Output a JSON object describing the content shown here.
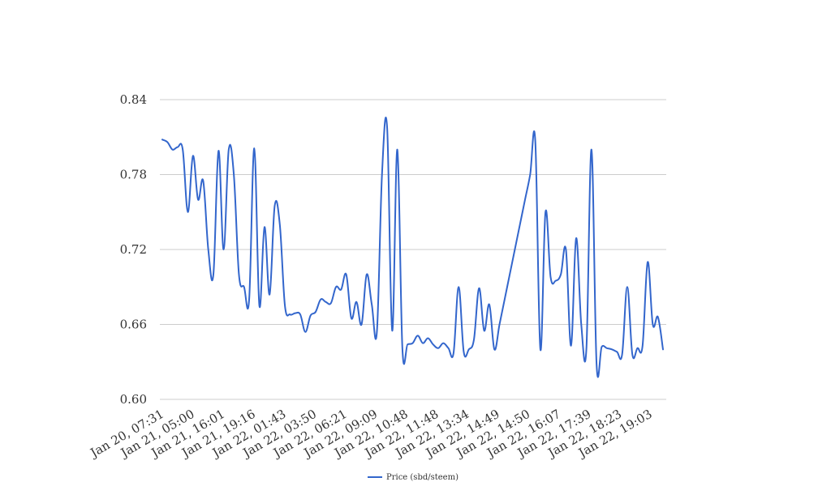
{
  "chart_data": {
    "type": "line",
    "title": "",
    "xlabel": "",
    "ylabel": "",
    "ylim": [
      0.6,
      0.84
    ],
    "y_ticks": [
      "0.60",
      "0.66",
      "0.72",
      "0.78",
      "0.84"
    ],
    "x_tick_labels": [
      "Jan 20, 07:31",
      "Jan 21, 05:00",
      "Jan 21, 16:01",
      "Jan 21, 19:16",
      "Jan 22, 01:43",
      "Jan 22, 03:50",
      "Jan 22, 06:21",
      "Jan 22, 09:09",
      "Jan 22, 10:48",
      "Jan 22, 11:48",
      "Jan 22, 13:34",
      "Jan 22, 14:49",
      "Jan 22, 14:50",
      "Jan 22, 16:07",
      "Jan 22, 17:39",
      "Jan 22, 18:23",
      "Jan 22, 19:03"
    ],
    "grid": true,
    "legend_position": "bottom",
    "series": [
      {
        "name": "Price (sbd/steem)",
        "color": "#3366cc",
        "values": [
          0.808,
          0.806,
          0.8,
          0.802,
          0.8,
          0.75,
          0.795,
          0.76,
          0.775,
          0.72,
          0.7,
          0.799,
          0.72,
          0.8,
          0.78,
          0.7,
          0.69,
          0.68,
          0.801,
          0.675,
          0.738,
          0.684,
          0.755,
          0.74,
          0.675,
          0.668,
          0.669,
          0.668,
          0.654,
          0.667,
          0.67,
          0.68,
          0.678,
          0.677,
          0.69,
          0.688,
          0.7,
          0.665,
          0.678,
          0.66,
          0.7,
          0.676,
          0.654,
          0.78,
          0.818,
          0.655,
          0.8,
          0.64,
          0.644,
          0.645,
          0.651,
          0.645,
          0.649,
          0.644,
          0.641,
          0.645,
          0.641,
          0.637,
          0.69,
          0.638,
          0.64,
          0.648,
          0.689,
          0.655,
          0.676,
          0.64,
          0.66,
          0.68,
          0.7,
          0.72,
          0.74,
          0.76,
          0.78,
          0.807,
          0.64,
          0.75,
          0.698,
          0.695,
          0.7,
          0.72,
          0.643,
          0.729,
          0.66,
          0.64,
          0.8,
          0.628,
          0.642,
          0.641,
          0.64,
          0.638,
          0.636,
          0.69,
          0.636,
          0.641,
          0.643,
          0.71,
          0.66,
          0.666,
          0.64
        ]
      }
    ]
  }
}
